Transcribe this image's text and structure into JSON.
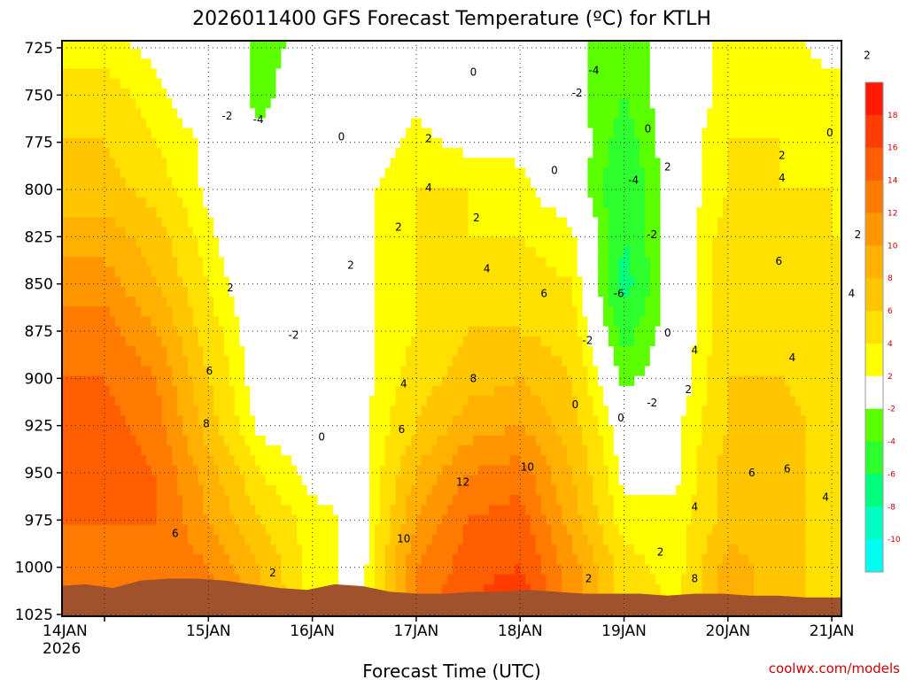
{
  "chart_data": {
    "type": "heatmap",
    "title": "2026011400 GFS Forecast Temperature (ºC) for KTLH",
    "xlabel": "Forecast Time (UTC)",
    "ylabel": "",
    "credit": "coolwx.com/models",
    "x_ticks": [
      "14JAN",
      "15JAN",
      "16JAN",
      "17JAN",
      "18JAN",
      "19JAN",
      "20JAN",
      "21JAN"
    ],
    "x_year": "2026",
    "xlim_days": [
      0,
      7.5
    ],
    "y_ticks": [
      "725",
      "750",
      "775",
      "800",
      "825",
      "850",
      "875",
      "900",
      "925",
      "950",
      "975",
      "1000",
      "1025"
    ],
    "ylim_hpa": [
      725,
      1025
    ],
    "colorbar": {
      "levels": [
        "18",
        "16",
        "14",
        "12",
        "10",
        "8",
        "6",
        "4",
        "2",
        "-2",
        "-4",
        "-6",
        "-8",
        "-10"
      ],
      "colors": [
        "#ff1a00",
        "#ff3d00",
        "#ff5e00",
        "#ff7a00",
        "#ff9600",
        "#ffb000",
        "#ffc600",
        "#ffe000",
        "#ffff00",
        "#ffffff",
        "#5cff00",
        "#2eff2e",
        "#00ff7c",
        "#00ffc0",
        "#00fff0"
      ]
    },
    "profiles": [
      {
        "t": 0.0,
        "temps": [
          2,
          4,
          5,
          6,
          8,
          10,
          12,
          13,
          14,
          14,
          13,
          12,
          12
        ]
      },
      {
        "t": 0.5,
        "temps": [
          1,
          2,
          3,
          4,
          6,
          7,
          9,
          11,
          12,
          13,
          13,
          13,
          13
        ]
      },
      {
        "t": 1.0,
        "temps": [
          0,
          0,
          1,
          1,
          2,
          3,
          4,
          5,
          6,
          8,
          9,
          11,
          12
        ]
      },
      {
        "t": 1.5,
        "temps": [
          -2,
          -2,
          -1,
          -1,
          -1,
          -1,
          0,
          0,
          1,
          3,
          5,
          7,
          8
        ]
      },
      {
        "t": 2.0,
        "temps": [
          -1,
          0,
          0,
          0,
          1,
          1,
          0,
          0,
          0,
          1,
          2,
          2,
          2
        ]
      },
      {
        "t": 2.5,
        "temps": [
          0,
          0,
          0,
          1,
          1,
          1,
          1,
          1,
          1,
          1,
          1,
          1,
          1
        ]
      },
      {
        "t": 3.0,
        "temps": [
          0,
          1,
          2,
          3,
          3,
          3,
          3,
          4,
          5,
          7,
          9,
          11,
          12
        ]
      },
      {
        "t": 3.5,
        "temps": [
          0,
          0,
          1,
          3,
          3,
          4,
          5,
          6,
          8,
          11,
          13,
          14,
          15
        ]
      },
      {
        "t": 4.0,
        "temps": [
          0,
          0,
          1,
          2,
          3,
          4,
          5,
          7,
          9,
          12,
          14,
          15,
          18
        ]
      },
      {
        "t": 4.5,
        "temps": [
          -1,
          -1,
          0,
          0,
          2,
          3,
          4,
          5,
          6,
          7,
          8,
          10,
          10
        ]
      },
      {
        "t": 5.0,
        "temps": [
          -3,
          -3,
          -4,
          -5,
          -5,
          -6,
          -4,
          -2,
          0,
          1,
          2,
          4,
          4
        ]
      },
      {
        "t": 5.5,
        "temps": [
          0,
          0,
          0,
          0,
          0,
          0,
          0,
          0,
          1,
          1,
          2,
          2,
          3
        ]
      },
      {
        "t": 6.0,
        "temps": [
          2,
          2,
          3,
          3,
          4,
          4,
          4,
          5,
          5,
          6,
          6,
          8,
          8
        ]
      },
      {
        "t": 6.5,
        "temps": [
          2,
          2,
          3,
          3,
          4,
          5,
          5,
          5,
          6,
          6,
          6,
          6,
          6
        ]
      },
      {
        "t": 7.0,
        "temps": [
          1,
          2,
          2,
          3,
          3,
          4,
          4,
          4,
          4,
          4,
          4,
          4,
          4
        ]
      },
      {
        "t": 7.5,
        "temps": [
          2,
          2,
          2,
          2,
          3,
          3,
          3,
          3,
          3,
          3,
          3,
          4,
          4
        ]
      }
    ],
    "contour_labels": [
      {
        "text": "-2",
        "t": 1.18,
        "p": 761
      },
      {
        "text": "-4",
        "t": 1.48,
        "p": 763
      },
      {
        "text": "2",
        "t": 1.21,
        "p": 852
      },
      {
        "text": "-2",
        "t": 1.82,
        "p": 877
      },
      {
        "text": "6",
        "t": 1.01,
        "p": 896
      },
      {
        "text": "8",
        "t": 0.98,
        "p": 924
      },
      {
        "text": "6",
        "t": 0.68,
        "p": 982
      },
      {
        "text": "2",
        "t": 1.62,
        "p": 1003
      },
      {
        "text": "0",
        "t": 2.09,
        "p": 931
      },
      {
        "text": "2",
        "t": 2.37,
        "p": 840
      },
      {
        "text": "0",
        "t": 2.28,
        "p": 772
      },
      {
        "text": "2",
        "t": 3.12,
        "p": 773
      },
      {
        "text": "4",
        "t": 3.12,
        "p": 799
      },
      {
        "text": "2",
        "t": 2.83,
        "p": 820
      },
      {
        "text": "2",
        "t": 3.58,
        "p": 815
      },
      {
        "text": "4",
        "t": 3.68,
        "p": 842
      },
      {
        "text": "4",
        "t": 2.88,
        "p": 903
      },
      {
        "text": "6",
        "t": 2.86,
        "p": 927
      },
      {
        "text": "8",
        "t": 3.55,
        "p": 900
      },
      {
        "text": "6",
        "t": 4.23,
        "p": 855
      },
      {
        "text": "10",
        "t": 4.07,
        "p": 947
      },
      {
        "text": "12",
        "t": 3.45,
        "p": 955
      },
      {
        "text": "10",
        "t": 2.88,
        "p": 985
      },
      {
        "text": "0",
        "t": 3.55,
        "p": 738
      },
      {
        "text": "-2",
        "t": 4.55,
        "p": 749
      },
      {
        "text": "-4",
        "t": 4.71,
        "p": 737
      },
      {
        "text": "0",
        "t": 4.33,
        "p": 790
      },
      {
        "text": "-4",
        "t": 5.09,
        "p": 795
      },
      {
        "text": "0",
        "t": 5.23,
        "p": 768
      },
      {
        "text": "-2",
        "t": 5.27,
        "p": 824
      },
      {
        "text": "-6",
        "t": 4.95,
        "p": 855
      },
      {
        "text": "-2",
        "t": 4.65,
        "p": 880
      },
      {
        "text": "0",
        "t": 4.97,
        "p": 921
      },
      {
        "text": "0",
        "t": 4.53,
        "p": 914
      },
      {
        "text": "-2",
        "t": 5.27,
        "p": 913
      },
      {
        "text": "0",
        "t": 5.42,
        "p": 876
      },
      {
        "text": "2",
        "t": 5.42,
        "p": 788
      },
      {
        "text": "4",
        "t": 5.68,
        "p": 885
      },
      {
        "text": "2",
        "t": 5.62,
        "p": 906
      },
      {
        "text": "2",
        "t": 5.35,
        "p": 992
      },
      {
        "text": "2",
        "t": 4.66,
        "p": 1006
      },
      {
        "text": "4",
        "t": 5.68,
        "p": 968
      },
      {
        "text": "8",
        "t": 5.68,
        "p": 1006
      },
      {
        "text": "6",
        "t": 6.23,
        "p": 950
      },
      {
        "text": "6",
        "t": 6.57,
        "p": 948
      },
      {
        "text": "4",
        "t": 6.94,
        "p": 963
      },
      {
        "text": "4",
        "t": 6.52,
        "p": 794
      },
      {
        "text": "6",
        "t": 6.49,
        "p": 838
      },
      {
        "text": "4",
        "t": 6.62,
        "p": 889
      },
      {
        "text": "2",
        "t": 6.52,
        "p": 782
      },
      {
        "text": "0",
        "t": 6.98,
        "p": 770
      },
      {
        "text": "2",
        "t": 7.34,
        "p": 729
      },
      {
        "text": "2",
        "t": 7.25,
        "p": 824
      },
      {
        "text": "4",
        "t": 7.19,
        "p": 855
      },
      {
        "text": "2",
        "t": 7.44,
        "p": 949
      }
    ]
  }
}
